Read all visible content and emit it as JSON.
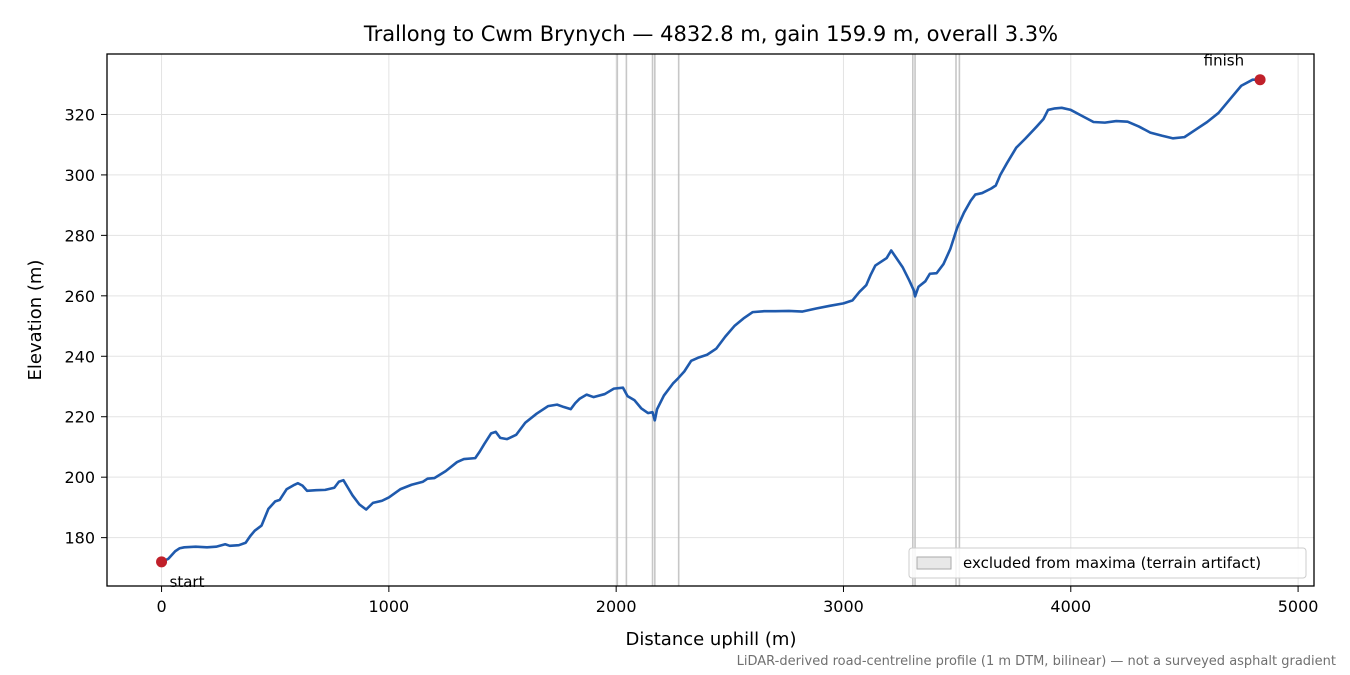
{
  "chart_data": {
    "type": "line",
    "title": "Trallong to Cwm Brynych — 4832.8 m, gain 159.9 m, overall 3.3%",
    "xlabel": "Distance uphill (m)",
    "ylabel": "Elevation (m)",
    "xlim": [
      -240,
      5070
    ],
    "ylim": [
      164,
      340
    ],
    "x_ticks": [
      0,
      1000,
      2000,
      3000,
      4000,
      5000
    ],
    "y_ticks": [
      180,
      200,
      220,
      240,
      260,
      280,
      300,
      320
    ],
    "grid": true,
    "legend": {
      "position": "lower-right",
      "label": "excluded from maxima (terrain artifact)"
    },
    "footnote": "LiDAR-derived road-centreline profile (1 m DTM, bilinear) — not a surveyed asphalt gradient",
    "colors": {
      "line": "#1f5aad",
      "marker": "#c0202a",
      "band": "#bdbdbd"
    },
    "excluded_x": [
      2005,
      2045,
      2160,
      2170,
      2275,
      3305,
      3315,
      3495,
      3510
    ],
    "annotations": [
      {
        "text": "start",
        "x": 0,
        "y": 172
      },
      {
        "text": "finish",
        "x": 4832.8,
        "y": 331.5
      }
    ],
    "series": [
      {
        "points": [
          [
            0,
            172
          ],
          [
            30,
            173
          ],
          [
            60,
            175.5
          ],
          [
            80,
            176.5
          ],
          [
            100,
            176.8
          ],
          [
            150,
            177
          ],
          [
            200,
            176.8
          ],
          [
            240,
            177
          ],
          [
            280,
            177.8
          ],
          [
            300,
            177.3
          ],
          [
            340,
            177.5
          ],
          [
            370,
            178.3
          ],
          [
            390,
            180.5
          ],
          [
            410,
            182.3
          ],
          [
            440,
            184
          ],
          [
            470,
            189.5
          ],
          [
            500,
            192
          ],
          [
            520,
            192.5
          ],
          [
            550,
            196
          ],
          [
            580,
            197.3
          ],
          [
            600,
            198
          ],
          [
            620,
            197.2
          ],
          [
            640,
            195.5
          ],
          [
            680,
            195.7
          ],
          [
            720,
            195.8
          ],
          [
            760,
            196.5
          ],
          [
            780,
            198.5
          ],
          [
            800,
            199
          ],
          [
            820,
            196.5
          ],
          [
            840,
            194
          ],
          [
            870,
            191
          ],
          [
            900,
            189.3
          ],
          [
            930,
            191.5
          ],
          [
            970,
            192.2
          ],
          [
            1000,
            193.3
          ],
          [
            1050,
            196
          ],
          [
            1100,
            197.5
          ],
          [
            1150,
            198.5
          ],
          [
            1170,
            199.5
          ],
          [
            1200,
            199.7
          ],
          [
            1250,
            202
          ],
          [
            1300,
            205
          ],
          [
            1330,
            206
          ],
          [
            1380,
            206.3
          ],
          [
            1400,
            208.5
          ],
          [
            1420,
            211
          ],
          [
            1450,
            214.5
          ],
          [
            1470,
            215
          ],
          [
            1490,
            213
          ],
          [
            1520,
            212.6
          ],
          [
            1560,
            214
          ],
          [
            1600,
            218
          ],
          [
            1650,
            221
          ],
          [
            1700,
            223.5
          ],
          [
            1740,
            224
          ],
          [
            1770,
            223.2
          ],
          [
            1800,
            222.5
          ],
          [
            1820,
            224.5
          ],
          [
            1840,
            226
          ],
          [
            1870,
            227.3
          ],
          [
            1900,
            226.5
          ],
          [
            1950,
            227.5
          ],
          [
            1990,
            229.3
          ],
          [
            2030,
            229.6
          ],
          [
            2050,
            226.8
          ],
          [
            2080,
            225.5
          ],
          [
            2110,
            222.8
          ],
          [
            2140,
            221.2
          ],
          [
            2160,
            221.5
          ],
          [
            2170,
            218.8
          ],
          [
            2180,
            222.5
          ],
          [
            2210,
            227
          ],
          [
            2250,
            231
          ],
          [
            2270,
            232.5
          ],
          [
            2300,
            235
          ],
          [
            2330,
            238.5
          ],
          [
            2360,
            239.5
          ],
          [
            2400,
            240.5
          ],
          [
            2440,
            242.5
          ],
          [
            2480,
            246.5
          ],
          [
            2520,
            250
          ],
          [
            2560,
            252.5
          ],
          [
            2600,
            254.6
          ],
          [
            2650,
            254.9
          ],
          [
            2700,
            254.9
          ],
          [
            2760,
            255
          ],
          [
            2820,
            254.8
          ],
          [
            2880,
            255.8
          ],
          [
            2940,
            256.7
          ],
          [
            3000,
            257.5
          ],
          [
            3040,
            258.5
          ],
          [
            3070,
            261.3
          ],
          [
            3100,
            263.5
          ],
          [
            3120,
            267
          ],
          [
            3140,
            270
          ],
          [
            3160,
            271
          ],
          [
            3190,
            272.5
          ],
          [
            3210,
            275
          ],
          [
            3230,
            272.8
          ],
          [
            3260,
            269.5
          ],
          [
            3290,
            265
          ],
          [
            3310,
            261.7
          ],
          [
            3315,
            259.8
          ],
          [
            3330,
            263
          ],
          [
            3360,
            264.8
          ],
          [
            3380,
            267.3
          ],
          [
            3410,
            267.5
          ],
          [
            3440,
            270.5
          ],
          [
            3470,
            275.5
          ],
          [
            3500,
            282.5
          ],
          [
            3530,
            287.5
          ],
          [
            3560,
            291.5
          ],
          [
            3580,
            293.5
          ],
          [
            3610,
            294
          ],
          [
            3650,
            295.5
          ],
          [
            3670,
            296.5
          ],
          [
            3690,
            300
          ],
          [
            3720,
            304
          ],
          [
            3760,
            309
          ],
          [
            3800,
            312
          ],
          [
            3850,
            316
          ],
          [
            3880,
            318.5
          ],
          [
            3900,
            321.5
          ],
          [
            3930,
            322
          ],
          [
            3960,
            322.2
          ],
          [
            4000,
            321.5
          ],
          [
            4050,
            319.5
          ],
          [
            4100,
            317.5
          ],
          [
            4150,
            317.3
          ],
          [
            4200,
            317.8
          ],
          [
            4250,
            317.6
          ],
          [
            4300,
            316
          ],
          [
            4350,
            314
          ],
          [
            4400,
            313
          ],
          [
            4450,
            312.1
          ],
          [
            4500,
            312.5
          ],
          [
            4550,
            315
          ],
          [
            4600,
            317.5
          ],
          [
            4650,
            320.5
          ],
          [
            4700,
            325
          ],
          [
            4750,
            329.5
          ],
          [
            4800,
            331.5
          ],
          [
            4832.8,
            331.5
          ]
        ]
      }
    ]
  }
}
